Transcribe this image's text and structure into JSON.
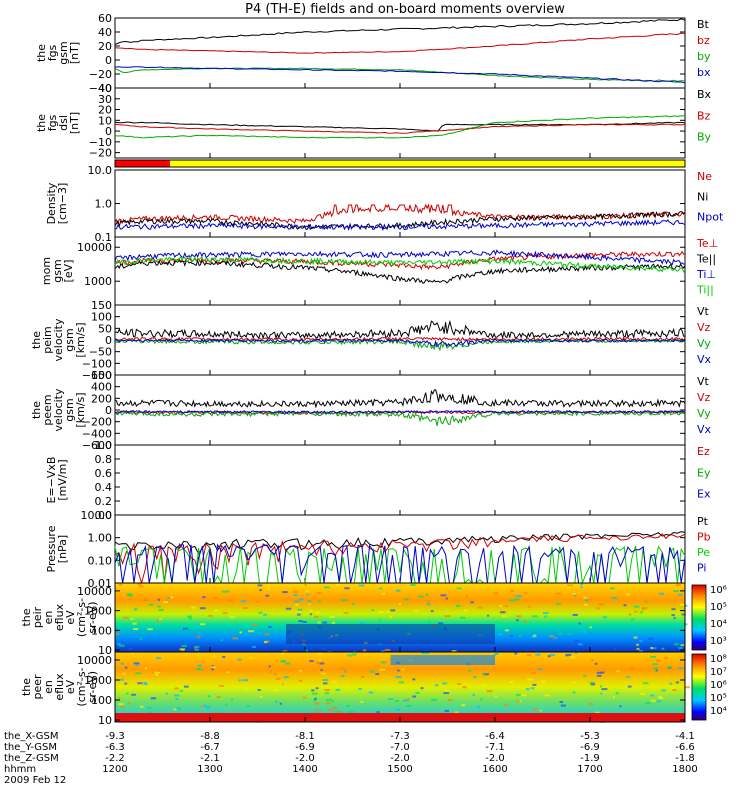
{
  "title": "P4 (TH-E) fields and on-board moments overview",
  "footer": {
    "row_labels": [
      "the_X-GSM",
      "the_Y-GSM",
      "the_Z-GSM",
      "hhmm",
      "2009 Feb 12"
    ],
    "columns": [
      {
        "x": "-9.3",
        "y": "-6.3",
        "z": "-2.2",
        "t": "1200"
      },
      {
        "x": "-8.8",
        "y": "-6.7",
        "z": "-2.1",
        "t": "1300"
      },
      {
        "x": "-8.1",
        "y": "-6.9",
        "z": "-2.0",
        "t": "1400"
      },
      {
        "x": "-7.3",
        "y": "-7.0",
        "z": "-2.0",
        "t": "1500"
      },
      {
        "x": "-6.4",
        "y": "-7.1",
        "z": "-2.0",
        "t": "1600"
      },
      {
        "x": "-5.3",
        "y": "-6.9",
        "z": "-1.9",
        "t": "1700"
      },
      {
        "x": "-4.1",
        "y": "-6.6",
        "z": "-1.8",
        "t": "1800"
      }
    ]
  },
  "chart_data": [
    {
      "type": "line",
      "id": "fgs",
      "ylabel": [
        "the",
        "fgs",
        "gsm",
        "[nT]"
      ],
      "yticks": [
        "60",
        "40",
        "20",
        "0",
        "−20",
        "−40"
      ],
      "ylim": [
        -40,
        60
      ],
      "series": [
        {
          "name": "Bt",
          "color": "#000000",
          "x": [
            1200,
            1210,
            1215,
            1230,
            1300,
            1400,
            1500,
            1600,
            1700,
            1800
          ],
          "values": [
            22,
            28,
            25,
            28,
            32,
            40,
            44,
            48,
            52,
            58
          ]
        },
        {
          "name": "bz",
          "color": "#cc0000",
          "x": [
            1200,
            1230,
            1300,
            1400,
            1500,
            1600,
            1700,
            1800
          ],
          "values": [
            18,
            15,
            13,
            10,
            12,
            20,
            30,
            38
          ]
        },
        {
          "name": "by",
          "color": "#00aa00",
          "x": [
            1200,
            1210,
            1230,
            1300,
            1400,
            1500,
            1600,
            1700,
            1800
          ],
          "values": [
            -12,
            -18,
            -14,
            -12,
            -12,
            -14,
            -22,
            -28,
            -30
          ]
        },
        {
          "name": "bx",
          "color": "#0000cc",
          "x": [
            1200,
            1230,
            1300,
            1400,
            1500,
            1600,
            1700,
            1800
          ],
          "values": [
            -10,
            -10,
            -12,
            -14,
            -16,
            -20,
            -26,
            -32
          ]
        }
      ]
    },
    {
      "type": "line",
      "id": "fgs_dsl",
      "ylabel": [
        "the",
        "fgs",
        "dsl",
        "[nT]"
      ],
      "yticks": [
        "40",
        "30",
        "20",
        "10",
        "0",
        "−10",
        "−20"
      ],
      "ylim": [
        -25,
        40
      ],
      "series": [
        {
          "name": "Bx",
          "color": "#000000",
          "x": [
            1200,
            1230,
            1300,
            1400,
            1500,
            1540,
            1545,
            1600,
            1700,
            1800
          ],
          "values": [
            8,
            8,
            6,
            4,
            2,
            0,
            6,
            6,
            6,
            8
          ]
        },
        {
          "name": "Bz",
          "color": "#cc0000",
          "x": [
            1200,
            1230,
            1300,
            1400,
            1500,
            1600,
            1700,
            1800
          ],
          "values": [
            6,
            4,
            2,
            0,
            -2,
            4,
            6,
            6
          ]
        },
        {
          "name": "By",
          "color": "#00aa00",
          "x": [
            1200,
            1230,
            1300,
            1400,
            1500,
            1545,
            1600,
            1700,
            1800
          ],
          "values": [
            -4,
            -6,
            -4,
            -6,
            -6,
            -4,
            8,
            12,
            14
          ]
        }
      ]
    },
    {
      "type": "line",
      "id": "density",
      "ylog": true,
      "ylabel": [
        "Density",
        "[cm−3]"
      ],
      "yticks": [
        "10.0",
        "1.0",
        "0.1"
      ],
      "ylim": [
        0.1,
        10
      ],
      "series": [
        {
          "name": "Ne",
          "color": "#cc0000",
          "x": [
            1200,
            1230,
            1300,
            1400,
            1440,
            1500,
            1540,
            1600,
            1700,
            1800
          ],
          "values": [
            0.3,
            0.35,
            0.4,
            0.3,
            0.6,
            0.7,
            0.6,
            0.4,
            0.4,
            0.5
          ]
        },
        {
          "name": "Ni",
          "color": "#000000",
          "x": [
            1200,
            1230,
            1300,
            1400,
            1500,
            1600,
            1700,
            1800
          ],
          "values": [
            0.25,
            0.3,
            0.3,
            0.2,
            0.22,
            0.35,
            0.4,
            0.5
          ]
        },
        {
          "name": "Npot",
          "color": "#0000cc",
          "x": [
            1200,
            1300,
            1400,
            1500,
            1600,
            1700,
            1800
          ],
          "values": [
            0.2,
            0.22,
            0.2,
            0.2,
            0.22,
            0.25,
            0.28
          ]
        }
      ]
    },
    {
      "type": "line",
      "id": "eflux",
      "ylog": true,
      "ylabel": [
        "mom",
        "gsm",
        "[eV]"
      ],
      "yticks": [
        "10000",
        "1000"
      ],
      "ylim": [
        200,
        20000
      ],
      "series": [
        {
          "name": "Te⊥",
          "color": "#cc0000",
          "x": [
            1200,
            1230,
            1300,
            1400,
            1500,
            1540,
            1600,
            1700,
            1800
          ],
          "values": [
            3500,
            4000,
            4200,
            3800,
            3000,
            2500,
            4500,
            6000,
            6500
          ]
        },
        {
          "name": "Te||",
          "color": "#000000",
          "x": [
            1200,
            1230,
            1300,
            1400,
            1500,
            1540,
            1600,
            1700,
            1800
          ],
          "values": [
            2500,
            3500,
            3500,
            2500,
            1200,
            900,
            2000,
            2500,
            2800
          ]
        },
        {
          "name": "Ti⊥",
          "color": "#0000cc",
          "x": [
            1200,
            1230,
            1300,
            1400,
            1500,
            1600,
            1700,
            1800
          ],
          "values": [
            4500,
            5500,
            6000,
            6500,
            6000,
            7000,
            5000,
            3500
          ]
        },
        {
          "name": "Ti||",
          "color": "#00cc00",
          "x": [
            1200,
            1230,
            1300,
            1400,
            1500,
            1600,
            1700,
            1800
          ],
          "values": [
            3500,
            4200,
            4500,
            4000,
            3500,
            4000,
            2800,
            2200
          ]
        }
      ]
    },
    {
      "type": "line",
      "id": "peim_v",
      "ylabel": [
        "the",
        "peim",
        "velocity",
        "gsm",
        "[km/s]"
      ],
      "yticks": [
        "150",
        "100",
        "50",
        "0",
        "−50",
        "−100",
        "−150"
      ],
      "ylim": [
        -150,
        150
      ],
      "series": [
        {
          "name": "Vt",
          "color": "#000000",
          "x": [
            1200,
            1300,
            1400,
            1500,
            1540,
            1600,
            1700,
            1800
          ],
          "values": [
            30,
            25,
            20,
            30,
            60,
            20,
            25,
            30
          ]
        },
        {
          "name": "Vz",
          "color": "#cc0000",
          "x": [
            1200,
            1300,
            1400,
            1500,
            1600,
            1700,
            1800
          ],
          "values": [
            5,
            4,
            2,
            5,
            3,
            4,
            5
          ]
        },
        {
          "name": "Vy",
          "color": "#00aa00",
          "x": [
            1200,
            1300,
            1400,
            1500,
            1540,
            1600,
            1700,
            1800
          ],
          "values": [
            -5,
            -8,
            -10,
            -8,
            -30,
            -6,
            -4,
            -5
          ]
        },
        {
          "name": "Vx",
          "color": "#0000cc",
          "x": [
            1200,
            1300,
            1400,
            1500,
            1540,
            1600,
            1700,
            1800
          ],
          "values": [
            -2,
            -2,
            -4,
            -2,
            -20,
            -2,
            -3,
            -2
          ]
        }
      ]
    },
    {
      "type": "line",
      "id": "peem_v",
      "ylabel": [
        "the",
        "peem",
        "velocity",
        "gsm",
        "[km/s]"
      ],
      "yticks": [
        "600",
        "400",
        "200",
        "0",
        "−200",
        "−400",
        "−600"
      ],
      "ylim": [
        -600,
        600
      ],
      "series": [
        {
          "name": "Vt",
          "color": "#000000",
          "x": [
            1200,
            1300,
            1400,
            1500,
            1540,
            1600,
            1700,
            1800
          ],
          "values": [
            120,
            110,
            100,
            130,
            250,
            120,
            110,
            120
          ]
        },
        {
          "name": "Vz",
          "color": "#cc0000",
          "x": [
            1200,
            1300,
            1400,
            1500,
            1600,
            1700,
            1800
          ],
          "values": [
            -40,
            -40,
            -50,
            -40,
            -40,
            -40,
            -40
          ]
        },
        {
          "name": "Vy",
          "color": "#00aa00",
          "x": [
            1200,
            1300,
            1400,
            1500,
            1540,
            1600,
            1700,
            1800
          ],
          "values": [
            -60,
            -80,
            -60,
            -80,
            -200,
            -60,
            -60,
            -60
          ]
        },
        {
          "name": "Vx",
          "color": "#0000cc",
          "x": [
            1200,
            1300,
            1400,
            1500,
            1600,
            1700,
            1800
          ],
          "values": [
            -30,
            -30,
            -40,
            -30,
            -30,
            -30,
            -30
          ]
        }
      ]
    },
    {
      "type": "line",
      "id": "efield",
      "ylabel": [
        "E=−VxB",
        "[mV/m]"
      ],
      "yticks": [
        "1.0",
        "0.8",
        "0.6",
        "0.4",
        "0.2",
        "0.0"
      ],
      "ylim": [
        0,
        1
      ],
      "series": [
        {
          "name": "Ez",
          "color": "#cc0000",
          "x": [],
          "values": []
        },
        {
          "name": "Ey",
          "color": "#00aa00",
          "x": [],
          "values": []
        },
        {
          "name": "Ex",
          "color": "#0000cc",
          "x": [],
          "values": []
        }
      ]
    },
    {
      "type": "line",
      "id": "pressure",
      "ylog": true,
      "ylabel": [
        "Pressure",
        "[nPa]"
      ],
      "yticks": [
        "10.00",
        "1.00",
        "0.10",
        "0.01"
      ],
      "ylim": [
        0.01,
        10
      ],
      "series": [
        {
          "name": "Pt",
          "color": "#000000",
          "x": [
            1200,
            1230,
            1300,
            1400,
            1500,
            1600,
            1700,
            1800
          ],
          "values": [
            0.4,
            0.45,
            0.5,
            0.6,
            0.7,
            0.9,
            1.2,
            1.6
          ]
        },
        {
          "name": "Pb",
          "color": "#cc0000",
          "x": [
            1200,
            1230,
            1300,
            1400,
            1500,
            1600,
            1700,
            1800
          ],
          "values": [
            0.2,
            0.25,
            0.3,
            0.4,
            0.5,
            0.7,
            1.0,
            1.3
          ]
        },
        {
          "name": "Pe",
          "color": "#00cc00",
          "x": [
            1200,
            1230,
            1300,
            1400,
            1450,
            1500,
            1540,
            1600,
            1700,
            1800
          ],
          "values": [
            0.12,
            0.15,
            0.1,
            0.06,
            0.04,
            0.03,
            0.025,
            0.08,
            0.12,
            0.2
          ]
        },
        {
          "name": "Pi",
          "color": "#0000cc",
          "x": [
            1200,
            1230,
            1300,
            1400,
            1500,
            1600,
            1700,
            1800
          ],
          "values": [
            0.15,
            0.2,
            0.2,
            0.18,
            0.16,
            0.12,
            0.1,
            0.08
          ]
        }
      ]
    },
    {
      "type": "heatmap",
      "id": "peir",
      "ylog": true,
      "ylabel": [
        "the",
        "peir",
        "en",
        "eflux",
        "eV",
        "(cm²-s-",
        "sr-eV)"
      ],
      "yticks": [
        "10000",
        "1000",
        "100",
        "10"
      ],
      "ylim": [
        8,
        25000
      ],
      "colorbar_ticks": [
        "10⁶",
        "10⁵",
        "10⁴",
        "10³"
      ]
    },
    {
      "type": "heatmap",
      "id": "peer",
      "ylog": true,
      "ylabel": [
        "the",
        "peer",
        "en",
        "eflux",
        "eV",
        "(cm²-s-",
        "sr-eV)"
      ],
      "yticks": [
        "10000",
        "1000",
        "100",
        "10"
      ],
      "ylim": [
        8,
        25000
      ],
      "colorbar_ticks": [
        "10⁸",
        "10⁷",
        "10⁶",
        "10⁵",
        "10⁴"
      ]
    }
  ]
}
